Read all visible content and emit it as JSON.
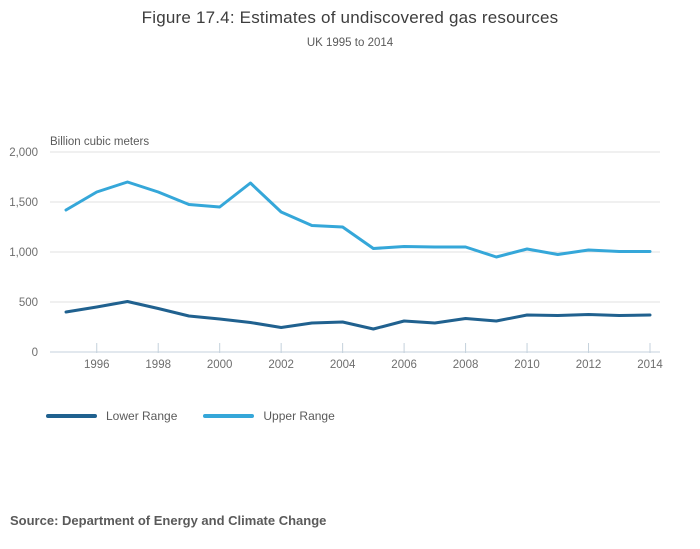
{
  "header": {
    "title": "Figure 17.4: Estimates of undiscovered gas resources",
    "subtitle": "UK 1995 to 2014"
  },
  "chart_data": {
    "type": "line",
    "title": "Figure 17.4: Estimates of undiscovered gas resources",
    "subtitle": "UK 1995 to 2014",
    "unit_label": "Billion cubic meters",
    "x": [
      1995,
      1996,
      1997,
      1998,
      1999,
      2000,
      2001,
      2002,
      2003,
      2004,
      2005,
      2006,
      2007,
      2008,
      2009,
      2010,
      2011,
      2012,
      2013,
      2014
    ],
    "series": [
      {
        "name": "Lower Range",
        "color": "#20618F",
        "values": [
          400,
          450,
          505,
          435,
          360,
          330,
          295,
          245,
          290,
          300,
          230,
          310,
          290,
          335,
          310,
          370,
          365,
          375,
          365,
          370
        ]
      },
      {
        "name": "Upper Range",
        "color": "#35A7D9",
        "values": [
          1420,
          1600,
          1700,
          1600,
          1475,
          1450,
          1690,
          1400,
          1265,
          1250,
          1035,
          1055,
          1050,
          1050,
          950,
          1030,
          975,
          1020,
          1005,
          1005
        ]
      }
    ],
    "ylim": [
      0,
      2000
    ],
    "y_tick_values": [
      0,
      500,
      1000,
      1500,
      2000
    ],
    "y_tick_labels": [
      "0",
      "500",
      "1,000",
      "1,500",
      "2,000"
    ],
    "x_tick_values": [
      1996,
      1998,
      2000,
      2002,
      2004,
      2006,
      2008,
      2010,
      2012,
      2014
    ],
    "x_tick_labels": [
      "1996",
      "1998",
      "2000",
      "2002",
      "2004",
      "2006",
      "2008",
      "2010",
      "2012",
      "2014"
    ],
    "grid": true,
    "legend_position": "bottom-left",
    "colors": {
      "gridline": "#e0e0e0",
      "axis_line": "#c4d1dc",
      "tick_mark": "#c4d1dc",
      "tick_text": "#6e6e6e"
    }
  },
  "legend": {
    "items": [
      {
        "label": "Lower Range",
        "color": "#20618F"
      },
      {
        "label": "Upper Range",
        "color": "#35A7D9"
      }
    ]
  },
  "source": {
    "text": "Source: Department of Energy and Climate Change"
  }
}
